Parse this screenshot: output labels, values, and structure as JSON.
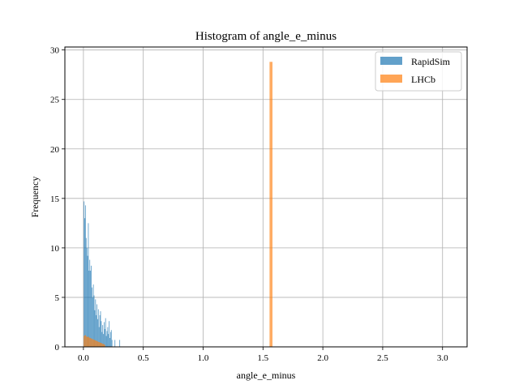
{
  "chart_data": {
    "type": "bar",
    "title": "Histogram of angle_e_minus",
    "xlabel": "angle_e_minus",
    "ylabel": "Frequency",
    "xlim": [
      -0.155,
      3.205
    ],
    "ylim": [
      0,
      30.3
    ],
    "xticks": [
      0.0,
      0.5,
      1.0,
      1.5,
      2.0,
      2.5,
      3.0
    ],
    "xtick_labels": [
      "0.0",
      "0.5",
      "1.0",
      "1.5",
      "2.0",
      "2.5",
      "3.0"
    ],
    "yticks": [
      0,
      5,
      10,
      15,
      20,
      25,
      30
    ],
    "ytick_labels": [
      "0",
      "5",
      "10",
      "15",
      "20",
      "25",
      "30"
    ],
    "grid": true,
    "legend_position": "top-right",
    "series": [
      {
        "name": "RapidSim",
        "color": "#1f77b4",
        "alpha": 0.7,
        "bin_width": 0.006,
        "bin_starts": [
          0.002,
          0.008,
          0.014,
          0.02,
          0.026,
          0.032,
          0.038,
          0.044,
          0.05,
          0.056,
          0.062,
          0.068,
          0.074,
          0.08,
          0.086,
          0.092,
          0.098,
          0.104,
          0.11,
          0.116,
          0.122,
          0.128,
          0.134,
          0.14,
          0.146,
          0.152,
          0.158,
          0.164,
          0.17,
          0.176,
          0.182,
          0.188,
          0.194,
          0.2,
          0.206,
          0.212,
          0.218,
          0.224,
          0.23,
          0.236,
          0.26,
          0.3
        ],
        "values": [
          14.7,
          13.0,
          14.3,
          11.0,
          10.0,
          9.2,
          12.5,
          7.7,
          8.8,
          7.7,
          8.2,
          6.0,
          5.0,
          6.3,
          5.2,
          3.7,
          4.8,
          3.2,
          4.3,
          2.8,
          3.8,
          2.0,
          3.2,
          3.6,
          2.6,
          1.5,
          2.2,
          1.3,
          2.5,
          1.8,
          2.9,
          1.1,
          1.6,
          2.0,
          1.3,
          2.6,
          0.9,
          1.5,
          1.7,
          0.7,
          0.7,
          0.7
        ]
      },
      {
        "name": "LHCb",
        "color": "#ff7f0e",
        "alpha": 0.7,
        "bin_width": 0.006,
        "bin_starts": [
          0.002,
          0.008,
          0.014,
          0.02,
          0.026,
          0.032,
          0.038,
          0.044,
          0.05,
          0.056,
          0.062,
          0.068,
          0.074,
          0.08,
          0.086,
          0.092,
          0.098,
          0.104,
          0.11,
          0.116,
          0.122,
          0.128,
          0.134,
          0.14,
          0.146,
          0.152,
          0.158,
          0.164,
          0.17,
          0.176,
          1.555,
          1.561,
          1.567,
          1.573
        ],
        "values": [
          1.1,
          1.15,
          1.2,
          1.1,
          1.0,
          1.0,
          1.05,
          0.95,
          0.9,
          0.9,
          0.85,
          0.8,
          0.8,
          0.75,
          0.7,
          0.7,
          0.65,
          0.6,
          0.6,
          0.55,
          0.5,
          0.5,
          0.45,
          0.4,
          0.4,
          0.35,
          0.3,
          0.3,
          0.25,
          0.2,
          28.8,
          28.8,
          28.8,
          28.8
        ]
      }
    ]
  }
}
